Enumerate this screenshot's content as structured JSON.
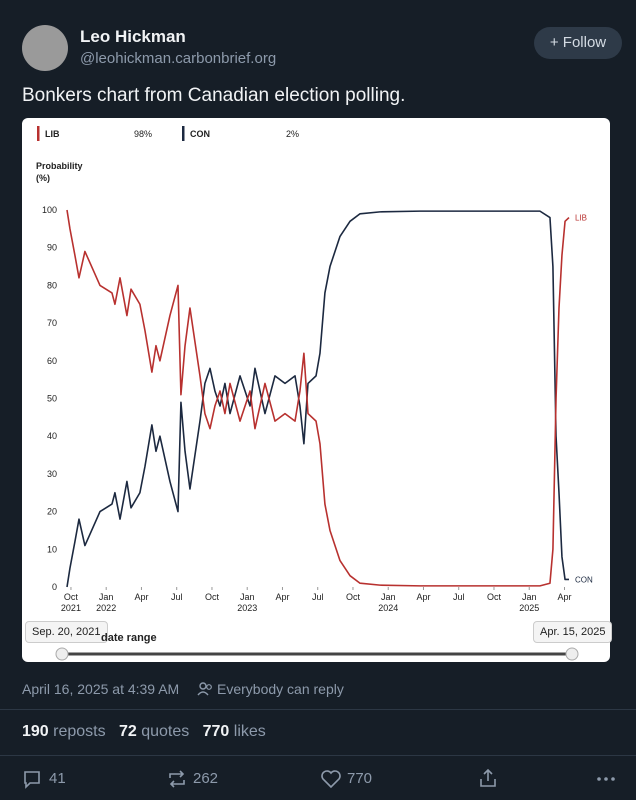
{
  "post": {
    "author": "Leo Hickman",
    "handle": "@leohickman.carbonbrief.org",
    "follow": "Follow",
    "text": "Bonkers chart from Canadian election polling.",
    "timestamp": "April 16, 2025 at 4:39 AM",
    "reply_setting": "Everybody can reply",
    "stats": [
      {
        "count": 190,
        "label": "reposts"
      },
      {
        "count": 72,
        "label": "quotes"
      },
      {
        "count": 770,
        "label": "likes"
      }
    ],
    "actions": {
      "replies": 41,
      "reposts": 262,
      "likes": 770
    }
  },
  "chart_data": {
    "type": "line",
    "ylabel": "Probability (%)",
    "x": [
      2021.722,
      2021.743,
      2021.778,
      2021.807,
      2021.849,
      2021.885,
      2021.956,
      2022.041,
      2022.062,
      2022.098,
      2022.147,
      2022.176,
      2022.239,
      2022.275,
      2022.324,
      2022.353,
      2022.381,
      2022.452,
      2022.509,
      2022.53,
      2022.559,
      2022.594,
      2022.665,
      2022.7,
      2022.736,
      2022.771,
      2022.807,
      2022.842,
      2022.878,
      2022.949,
      2023.02,
      2023.055,
      2023.126,
      2023.197,
      2023.268,
      2023.339,
      2023.374,
      2023.402,
      2023.431,
      2023.488,
      2023.516,
      2023.551,
      2023.587,
      2023.658,
      2023.729,
      2023.8,
      2023.941,
      2024.225,
      2024.651,
      2025.076,
      2025.147,
      2025.168,
      2025.19,
      2025.211,
      2025.232,
      2025.254,
      2025.282
    ],
    "series": [
      {
        "name": "LIB",
        "color": "#b8312f",
        "current_label": "98%",
        "values": [
          100,
          95,
          88,
          82,
          89,
          86,
          80,
          78,
          75,
          82,
          72,
          79,
          75,
          68,
          57,
          64,
          60,
          72,
          80,
          51,
          64,
          74,
          56,
          46,
          42,
          48,
          52,
          46,
          54,
          44,
          52,
          42,
          54,
          44,
          46,
          44,
          52,
          62,
          46,
          44,
          38,
          22,
          15,
          7,
          3,
          1,
          0.5,
          0.3,
          0.3,
          0.3,
          1,
          10,
          50,
          74,
          88,
          97,
          98
        ]
      },
      {
        "name": "CON",
        "color": "#1c2940",
        "current_label": "2%",
        "values": [
          0,
          5,
          12,
          18,
          11,
          14,
          20,
          22,
          25,
          18,
          28,
          21,
          25,
          32,
          43,
          36,
          40,
          28,
          20,
          49,
          36,
          26,
          44,
          54,
          58,
          52,
          48,
          54,
          46,
          56,
          48,
          58,
          46,
          56,
          54,
          56,
          48,
          38,
          54,
          56,
          62,
          78,
          85,
          93,
          97,
          99,
          99.5,
          99.7,
          99.7,
          99.7,
          98,
          85,
          40,
          25,
          8,
          2,
          2
        ]
      }
    ],
    "xlim": [
      2021.722,
      2025.282
    ],
    "xticks": [
      {
        "value": 2021.75,
        "label": "Oct 2021"
      },
      {
        "value": 2022.0,
        "label": "Jan 2022"
      },
      {
        "value": 2022.25,
        "label": "Apr"
      },
      {
        "value": 2022.5,
        "label": "Jul"
      },
      {
        "value": 2022.75,
        "label": "Oct"
      },
      {
        "value": 2023.0,
        "label": "Jan 2023"
      },
      {
        "value": 2023.25,
        "label": "Apr"
      },
      {
        "value": 2023.5,
        "label": "Jul"
      },
      {
        "value": 2023.75,
        "label": "Oct"
      },
      {
        "value": 2024.0,
        "label": "Jan 2024"
      },
      {
        "value": 2024.25,
        "label": "Apr"
      },
      {
        "value": 2024.5,
        "label": "Jul"
      },
      {
        "value": 2024.75,
        "label": "Oct"
      },
      {
        "value": 2025.0,
        "label": "Jan 2025"
      },
      {
        "value": 2025.25,
        "label": "Apr"
      }
    ],
    "ylim": [
      0,
      100
    ],
    "yticks": [
      0,
      10,
      20,
      30,
      40,
      50,
      60,
      70,
      80,
      90,
      100
    ],
    "grid": false,
    "range_start": "Sep. 20, 2021",
    "range_end": "Apr. 15, 2025",
    "range_title": "date range"
  }
}
